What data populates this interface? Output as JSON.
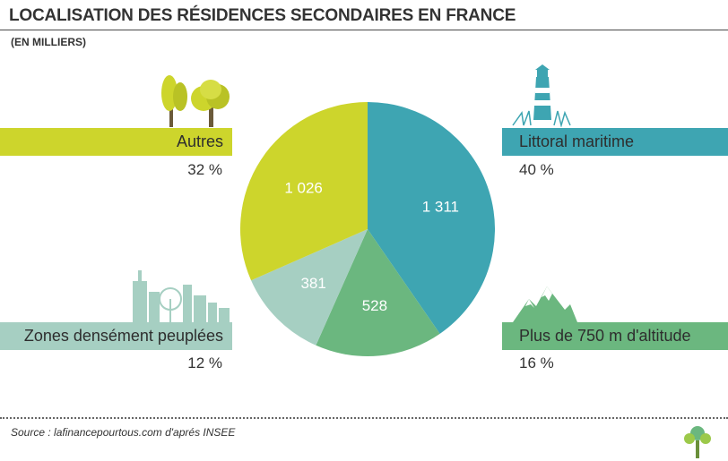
{
  "header": {
    "title": "LOCALISATION DES RÉSIDENCES SECONDAIRES EN FRANCE",
    "subtitle": "(EN MILLIERS)"
  },
  "chart_data": {
    "type": "pie",
    "title": "LOCALISATION DES RÉSIDENCES SECONDAIRES EN FRANCE",
    "subtitle": "(EN MILLIERS)",
    "slices": [
      {
        "label": "Littoral maritime",
        "value": 1311,
        "value_label": "1 311",
        "percent_label": "40 %",
        "color": "#3ea5b2"
      },
      {
        "label": "Plus de 750 m d'altitude",
        "value": 528,
        "value_label": "528",
        "percent_label": "16 %",
        "color": "#6bb77f"
      },
      {
        "label": "Zones densément peuplées",
        "value": 381,
        "value_label": "381",
        "percent_label": "12 %",
        "color": "#a6cfc2"
      },
      {
        "label": "Autres",
        "value": 1026,
        "value_label": "1 026",
        "percent_label": "32 %",
        "color": "#cdd52c"
      }
    ]
  },
  "footer": {
    "source": "Source : lafinancepourtous.com d'aprés INSEE"
  },
  "icons": {
    "autres": "trees-icon",
    "littoral": "lighthouse-icon",
    "zones": "city-skyline-icon",
    "altitude": "mountain-icon",
    "brand": "tree-logo-icon"
  }
}
